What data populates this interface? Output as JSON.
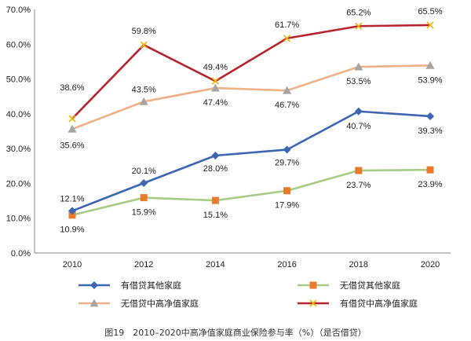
{
  "chart_data": {
    "type": "line",
    "title": "",
    "xlabel": "",
    "ylabel": "",
    "x": [
      "2010",
      "2012",
      "2014",
      "2016",
      "2018",
      "2020"
    ],
    "ylim": [
      0,
      70
    ],
    "yticks": [
      "0.0%",
      "10.0%",
      "20.0%",
      "30.0%",
      "40.0%",
      "50.0%",
      "60.0%",
      "70.0%"
    ],
    "grid": false,
    "legend_position": "bottom",
    "series": [
      {
        "name": "有借贷其他家庭",
        "values": [
          12.1,
          20.1,
          28.0,
          29.7,
          40.7,
          39.3
        ],
        "labels": [
          "12.1%",
          "20.1%",
          "28.0%",
          "29.7%",
          "40.7%",
          "39.3%"
        ],
        "color": "#3d66b4",
        "marker": "diamond"
      },
      {
        "name": "无借贷其他家庭",
        "values": [
          10.9,
          15.9,
          15.1,
          17.9,
          23.7,
          23.9
        ],
        "labels": [
          "10.9%",
          "15.9%",
          "15.1%",
          "17.9%",
          "23.7%",
          "23.9%"
        ],
        "color": "#a6cc86",
        "marker_color": "#ec7a2d",
        "marker": "square"
      },
      {
        "name": "无借贷中高净值家庭",
        "values": [
          35.6,
          43.5,
          47.4,
          46.7,
          53.5,
          53.9
        ],
        "labels": [
          "35.6%",
          "43.5%",
          "47.4%",
          "46.7%",
          "53.5%",
          "53.9%"
        ],
        "color": "#f0b088",
        "marker_color": "#a5a5a5",
        "marker": "triangle"
      },
      {
        "name": "有借贷中高净值家庭",
        "values": [
          38.6,
          59.8,
          49.4,
          61.7,
          65.2,
          65.5
        ],
        "labels": [
          "38.6%",
          "59.8%",
          "49.4%",
          "61.7%",
          "65.2%",
          "65.5%"
        ],
        "color": "#b5242f",
        "marker_color": "#f0b400",
        "marker": "x"
      }
    ]
  },
  "caption": "图19　2010–2020中高净值家庭商业保险参与率（%）（是否借贷）"
}
